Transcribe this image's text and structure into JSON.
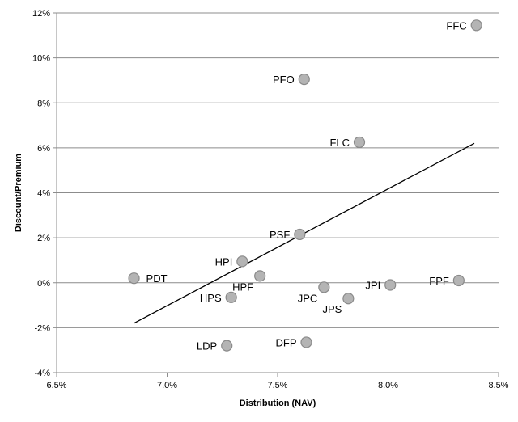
{
  "chart_data": {
    "type": "scatter",
    "xlabel": "Distribution (NAV)",
    "ylabel": "Discount/Premium",
    "xlim": [
      6.5,
      8.5
    ],
    "ylim": [
      -4,
      12
    ],
    "x_ticks": [
      6.5,
      7.0,
      7.5,
      8.0,
      8.5
    ],
    "x_tick_labels": [
      "6.5%",
      "7.0%",
      "7.5%",
      "8.0%",
      "8.5%"
    ],
    "y_ticks": [
      -4,
      -2,
      0,
      2,
      4,
      6,
      8,
      10,
      12
    ],
    "y_tick_labels": [
      "-4%",
      "-2%",
      "0%",
      "2%",
      "4%",
      "6%",
      "8%",
      "10%",
      "12%"
    ],
    "grid": "horizontal",
    "point_color": "#b4b4b4",
    "points": [
      {
        "label": "FFC",
        "x": 8.4,
        "y": 11.45,
        "label_side": "left"
      },
      {
        "label": "PFO",
        "x": 7.62,
        "y": 9.05,
        "label_side": "left"
      },
      {
        "label": "FLC",
        "x": 7.87,
        "y": 6.25,
        "label_side": "left"
      },
      {
        "label": "PSF",
        "x": 7.6,
        "y": 2.15,
        "label_side": "left"
      },
      {
        "label": "HPI",
        "x": 7.34,
        "y": 0.95,
        "label_side": "left"
      },
      {
        "label": "HPF",
        "x": 7.42,
        "y": 0.3,
        "label_side": "below-left"
      },
      {
        "label": "PDT",
        "x": 6.85,
        "y": 0.2,
        "label_side": "right"
      },
      {
        "label": "FPF",
        "x": 8.32,
        "y": 0.1,
        "label_side": "left"
      },
      {
        "label": "JPI",
        "x": 8.01,
        "y": -0.1,
        "label_side": "left"
      },
      {
        "label": "JPC",
        "x": 7.71,
        "y": -0.2,
        "label_side": "below-left"
      },
      {
        "label": "HPS",
        "x": 7.29,
        "y": -0.65,
        "label_side": "left"
      },
      {
        "label": "JPS",
        "x": 7.82,
        "y": -0.7,
        "label_side": "below-left"
      },
      {
        "label": "DFP",
        "x": 7.63,
        "y": -2.65,
        "label_side": "left"
      },
      {
        "label": "LDP",
        "x": 7.27,
        "y": -2.8,
        "label_side": "left"
      }
    ],
    "trendline": {
      "x1": 6.85,
      "y1": -1.8,
      "x2": 8.39,
      "y2": 6.2
    }
  }
}
